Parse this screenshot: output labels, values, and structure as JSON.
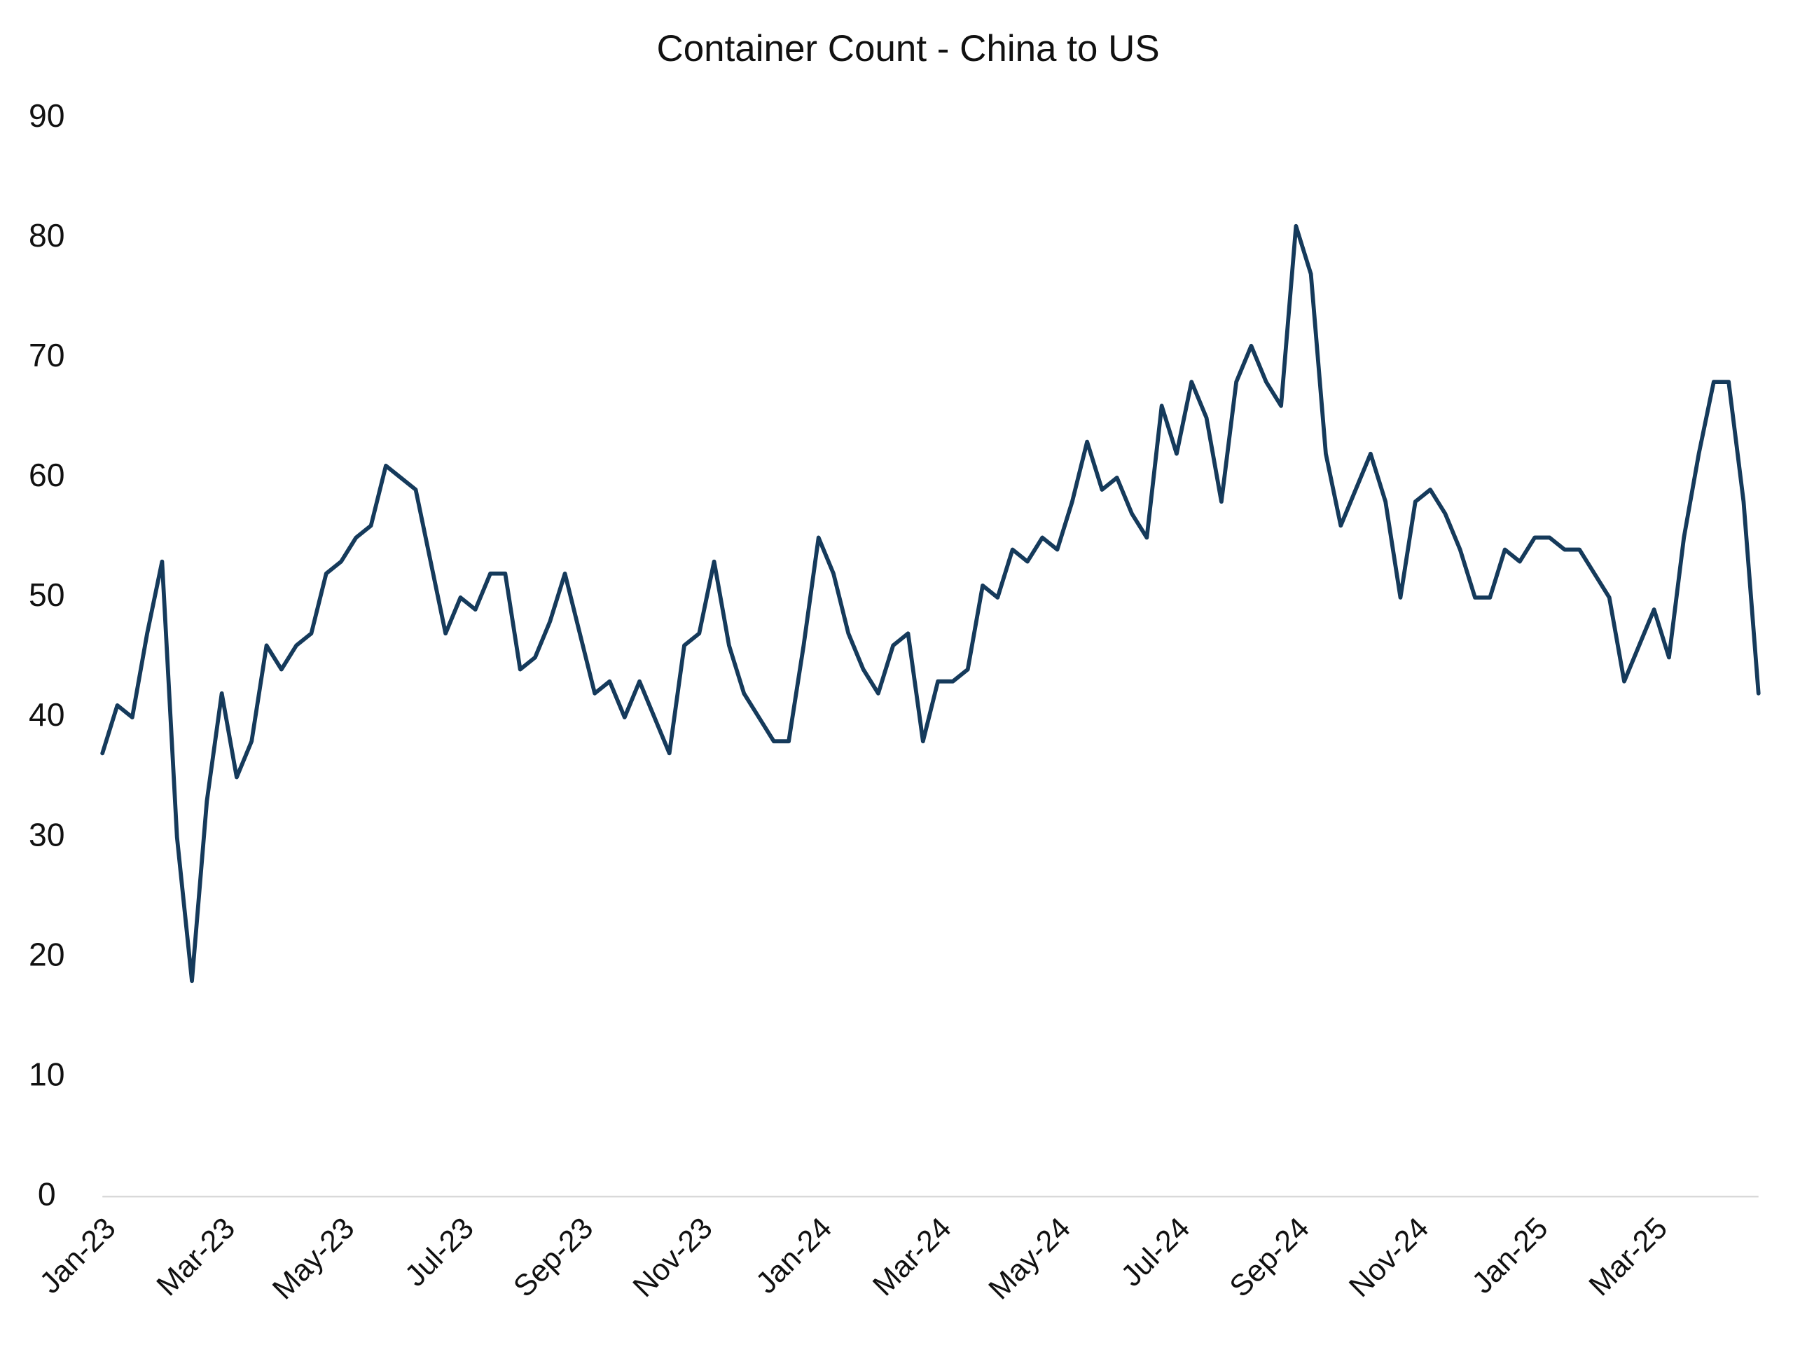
{
  "chart_data": {
    "type": "line",
    "title": "Container Count - China to US",
    "categories": [
      "Jan-23",
      null,
      null,
      null,
      null,
      null,
      null,
      null,
      "Mar-23",
      null,
      null,
      null,
      null,
      null,
      null,
      null,
      "May-23",
      null,
      null,
      null,
      null,
      null,
      null,
      null,
      "Jul-23",
      null,
      null,
      null,
      null,
      null,
      null,
      null,
      "Sep-23",
      null,
      null,
      null,
      null,
      null,
      null,
      null,
      "Nov-23",
      null,
      null,
      null,
      null,
      null,
      null,
      null,
      "Jan-24",
      null,
      null,
      null,
      null,
      null,
      null,
      null,
      "Mar-24",
      null,
      null,
      null,
      null,
      null,
      null,
      null,
      "May-24",
      null,
      null,
      null,
      null,
      null,
      null,
      null,
      "Jul-24",
      null,
      null,
      null,
      null,
      null,
      null,
      null,
      "Sep-24",
      null,
      null,
      null,
      null,
      null,
      null,
      null,
      "Nov-24",
      null,
      null,
      null,
      null,
      null,
      null,
      null,
      "Jan-25",
      null,
      null,
      null,
      null,
      null,
      null,
      null,
      "Mar-25",
      null,
      null,
      null,
      null,
      null,
      null,
      null
    ],
    "values": [
      37,
      41,
      40,
      47,
      53,
      30,
      18,
      33,
      42,
      35,
      38,
      46,
      44,
      46,
      47,
      52,
      53,
      55,
      56,
      61,
      60,
      59,
      53,
      47,
      50,
      49,
      52,
      52,
      44,
      45,
      48,
      52,
      47,
      42,
      43,
      40,
      43,
      40,
      37,
      46,
      47,
      53,
      46,
      42,
      40,
      38,
      38,
      46,
      55,
      52,
      47,
      44,
      42,
      46,
      47,
      38,
      43,
      43,
      44,
      51,
      50,
      54,
      53,
      55,
      54,
      58,
      63,
      59,
      60,
      57,
      55,
      66,
      62,
      68,
      65,
      58,
      68,
      71,
      68,
      66,
      81,
      77,
      62,
      56,
      59,
      62,
      58,
      50,
      58,
      59,
      57,
      54,
      50,
      50,
      54,
      53,
      55,
      55,
      54,
      54,
      52,
      50,
      43,
      46,
      49,
      45,
      55,
      62,
      68,
      68,
      58,
      42
    ],
    "color": "#153a5b",
    "ylim": [
      0,
      90
    ],
    "yticks": [
      0,
      10,
      20,
      30,
      40,
      50,
      60,
      70,
      80,
      90
    ]
  }
}
